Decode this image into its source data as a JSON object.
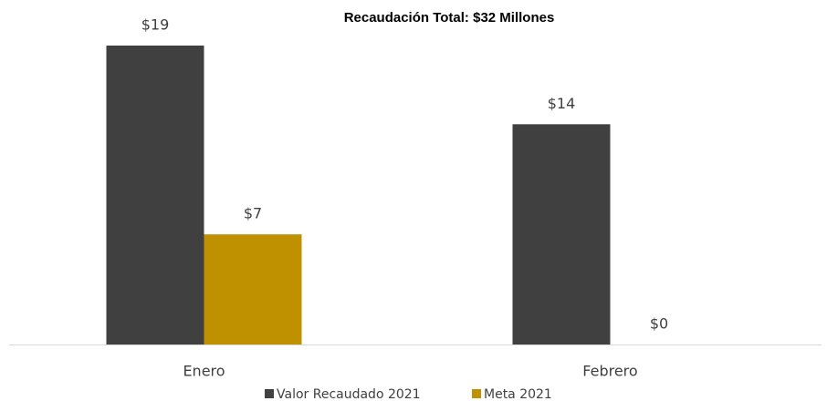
{
  "chart_data": {
    "type": "bar",
    "title": "Recaudación Total: $32 Millones",
    "categories": [
      "Enero",
      "Febrero"
    ],
    "series": [
      {
        "name": "Valor Recaudado 2021",
        "color": "#404040",
        "values": [
          19,
          14
        ],
        "value_labels": [
          "$19",
          "$14"
        ]
      },
      {
        "name": "Meta 2021",
        "color": "#bf9000",
        "values": [
          7,
          0
        ],
        "value_labels": [
          "$7",
          "$0"
        ]
      }
    ]
  }
}
